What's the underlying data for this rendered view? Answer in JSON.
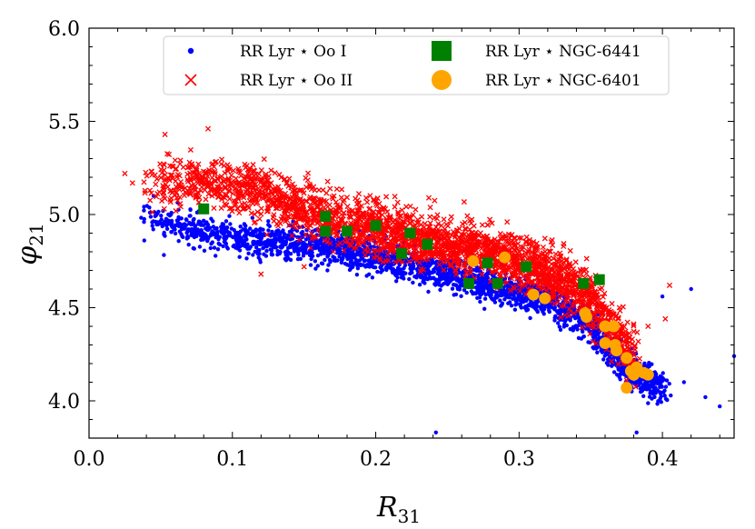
{
  "chart_data": {
    "type": "scatter",
    "title": "",
    "xlabel": "R",
    "xlabel_sub": "31",
    "ylabel": "φ",
    "ylabel_sub": "21",
    "xlim": [
      0.0,
      0.45
    ],
    "ylim": [
      3.8,
      6.0
    ],
    "x_ticks": [
      0.0,
      0.1,
      0.2,
      0.3,
      0.4
    ],
    "x_tick_labels": [
      "0.0",
      "0.1",
      "0.2",
      "0.3",
      "0.4"
    ],
    "y_ticks": [
      4.0,
      4.5,
      5.0,
      5.5,
      6.0
    ],
    "y_tick_labels": [
      "4.0",
      "4.5",
      "5.0",
      "5.5",
      "6.0"
    ],
    "grid": false,
    "legend_position": "top",
    "colors": {
      "ooi": "#0000ff",
      "ooii": "#ff0000",
      "ngc6441": "#008000",
      "ngc6401": "#ffa500"
    },
    "series": [
      {
        "name": "RR Lyr ⋆ Oo I",
        "marker": "dot",
        "color": "#0000ff",
        "density_trend": [
          [
            0.04,
            4.97
          ],
          [
            0.1,
            4.88
          ],
          [
            0.16,
            4.83
          ],
          [
            0.22,
            4.75
          ],
          [
            0.28,
            4.62
          ],
          [
            0.32,
            4.55
          ],
          [
            0.35,
            4.4
          ],
          [
            0.37,
            4.2
          ],
          [
            0.4,
            4.08
          ]
        ],
        "outliers": [
          [
            0.045,
            5.1
          ],
          [
            0.242,
            3.83
          ],
          [
            0.382,
            3.83
          ],
          [
            0.42,
            4.6
          ],
          [
            0.44,
            3.97
          ],
          [
            0.45,
            4.24
          ],
          [
            0.4,
            4.56
          ],
          [
            0.43,
            4.02
          ],
          [
            0.415,
            4.1
          ]
        ],
        "points": []
      },
      {
        "name": "RR Lyr ⋆ Oo II",
        "marker": "x",
        "color": "#ff0000",
        "density_trend": [
          [
            0.04,
            5.15
          ],
          [
            0.08,
            5.18
          ],
          [
            0.12,
            5.12
          ],
          [
            0.16,
            5.0
          ],
          [
            0.2,
            4.92
          ],
          [
            0.26,
            4.82
          ],
          [
            0.3,
            4.75
          ],
          [
            0.34,
            4.62
          ],
          [
            0.36,
            4.45
          ],
          [
            0.38,
            4.25
          ]
        ],
        "outliers": [
          [
            0.025,
            5.22
          ],
          [
            0.053,
            5.43
          ],
          [
            0.083,
            5.46
          ],
          [
            0.37,
            4.5
          ],
          [
            0.39,
            4.4
          ],
          [
            0.402,
            4.44
          ],
          [
            0.405,
            4.62
          ],
          [
            0.12,
            4.68
          ],
          [
            0.15,
            4.72
          ]
        ],
        "points": []
      },
      {
        "name": "RR Lyr ⋆ NGC-6441",
        "marker": "square",
        "color": "#008000",
        "points": [
          [
            0.08,
            5.03
          ],
          [
            0.165,
            4.99
          ],
          [
            0.165,
            4.91
          ],
          [
            0.18,
            4.91
          ],
          [
            0.2,
            4.94
          ],
          [
            0.218,
            4.79
          ],
          [
            0.224,
            4.9
          ],
          [
            0.236,
            4.84
          ],
          [
            0.265,
            4.63
          ],
          [
            0.278,
            4.74
          ],
          [
            0.285,
            4.63
          ],
          [
            0.305,
            4.72
          ],
          [
            0.345,
            4.63
          ],
          [
            0.356,
            4.65
          ]
        ]
      },
      {
        "name": "RR Lyr ⋆ NGC-6401",
        "marker": "circle",
        "color": "#ffa500",
        "points": [
          [
            0.268,
            4.75
          ],
          [
            0.29,
            4.77
          ],
          [
            0.31,
            4.57
          ],
          [
            0.318,
            4.55
          ],
          [
            0.346,
            4.47
          ],
          [
            0.347,
            4.45
          ],
          [
            0.36,
            4.4
          ],
          [
            0.366,
            4.4
          ],
          [
            0.36,
            4.31
          ],
          [
            0.368,
            4.27
          ],
          [
            0.367,
            4.3
          ],
          [
            0.375,
            4.23
          ],
          [
            0.378,
            4.16
          ],
          [
            0.38,
            4.14
          ],
          [
            0.382,
            4.18
          ],
          [
            0.387,
            4.15
          ],
          [
            0.39,
            4.14
          ],
          [
            0.375,
            4.07
          ]
        ]
      }
    ]
  }
}
